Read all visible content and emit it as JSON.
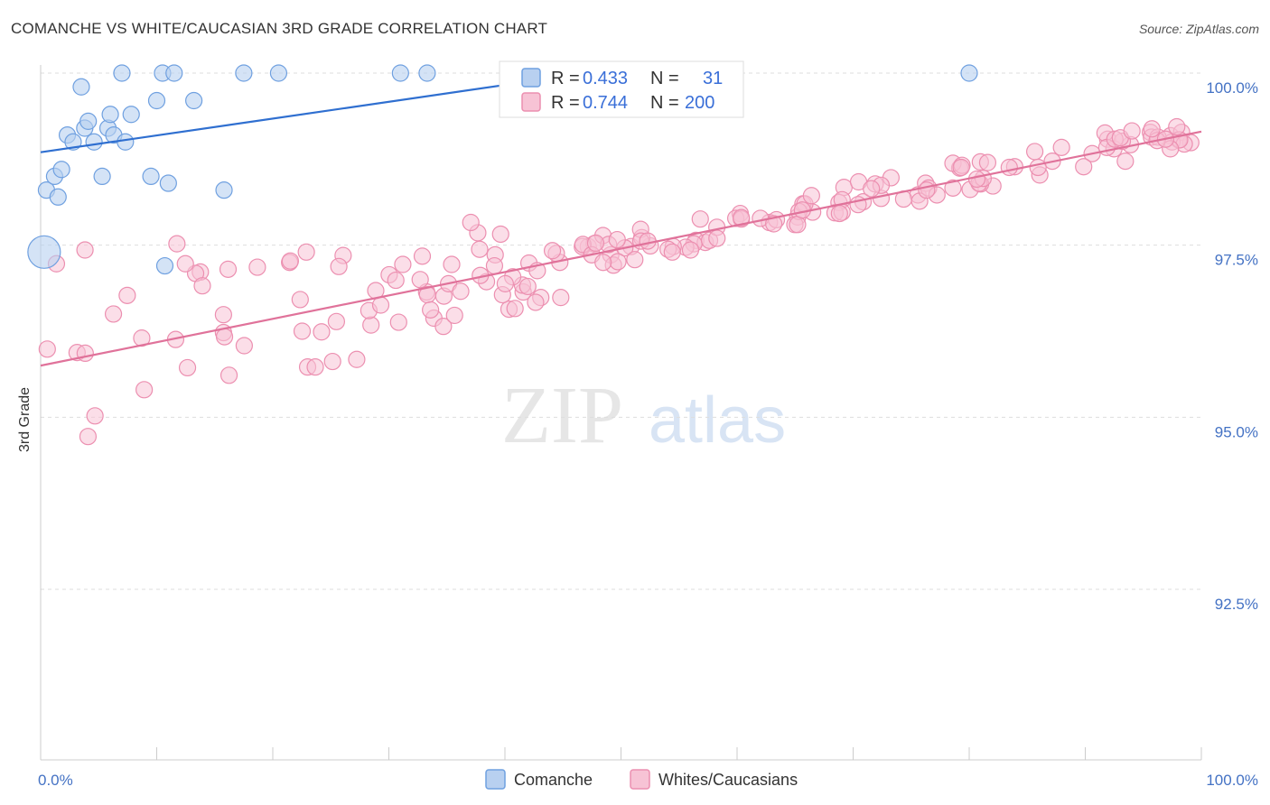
{
  "chart_data": {
    "type": "scatter",
    "title": "COMANCHE VS WHITE/CAUCASIAN 3RD GRADE CORRELATION CHART",
    "source": "Source: ZipAtlas.com",
    "ylabel": "3rd Grade",
    "xlabel": "",
    "xlim": [
      0,
      100
    ],
    "ylim": [
      90.0,
      100.5
    ],
    "x_tick_labels": [
      "0.0%",
      "100.0%"
    ],
    "y_ticks": [
      92.5,
      95.0,
      97.5,
      100.0
    ],
    "y_tick_labels": [
      "92.5%",
      "95.0%",
      "97.5%",
      "100.0%"
    ],
    "grid": true,
    "watermark": "ZIPatlas",
    "legend_position": "top-center",
    "series": [
      {
        "name": "Comanche",
        "color": "#6fa0e0",
        "fill": "#b8d0f0",
        "line_color": "#2f6fd0",
        "R": "0.433",
        "N": "31",
        "trend": [
          [
            0,
            98.85
          ],
          [
            45,
            99.95
          ]
        ],
        "points": [
          [
            0.3,
            97.4
          ],
          [
            0.5,
            98.3
          ],
          [
            1.2,
            98.5
          ],
          [
            1.5,
            98.2
          ],
          [
            1.8,
            98.6
          ],
          [
            2.3,
            99.1
          ],
          [
            2.8,
            99.0
          ],
          [
            3.5,
            99.8
          ],
          [
            3.8,
            99.2
          ],
          [
            4.1,
            99.3
          ],
          [
            4.6,
            99.0
          ],
          [
            5.3,
            98.5
          ],
          [
            5.8,
            99.2
          ],
          [
            6.0,
            99.4
          ],
          [
            6.3,
            99.1
          ],
          [
            7.8,
            99.4
          ],
          [
            7.3,
            99.0
          ],
          [
            9.5,
            98.5
          ],
          [
            7.0,
            100.0
          ],
          [
            10.0,
            99.6
          ],
          [
            11.0,
            98.4
          ],
          [
            10.5,
            100.0
          ],
          [
            11.5,
            100.0
          ],
          [
            13.2,
            99.6
          ],
          [
            15.8,
            98.3
          ],
          [
            10.7,
            97.2
          ],
          [
            17.5,
            100.0
          ],
          [
            20.5,
            100.0
          ],
          [
            31.0,
            100.0
          ],
          [
            33.3,
            100.0
          ],
          [
            80.0,
            100.0
          ]
        ]
      },
      {
        "name": "Whites/Caucasians",
        "color": "#ec8fb0",
        "fill": "#f7c3d5",
        "line_color": "#e0729a",
        "R": "0.744",
        "N": "200",
        "trend": [
          [
            0,
            95.75
          ],
          [
            100,
            99.15
          ]
        ],
        "points": []
      }
    ]
  },
  "legend": {
    "r_label": "R = ",
    "n_label": "N = ",
    "comanche_r": "0.433",
    "comanche_n": "31",
    "white_r": "0.744",
    "white_n": "200"
  }
}
